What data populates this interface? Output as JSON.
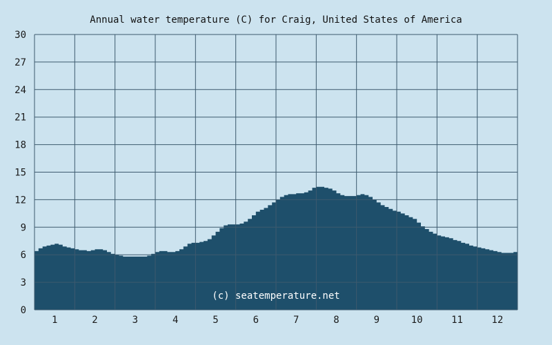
{
  "chart_data": {
    "type": "area",
    "title": "Annual water temperature (C) for Craig, United States of America",
    "watermark": "(c) seatemperature.net",
    "xlabel": "",
    "ylabel": "",
    "x_ticks": [
      "1",
      "2",
      "3",
      "4",
      "5",
      "6",
      "7",
      "8",
      "9",
      "10",
      "11",
      "12"
    ],
    "y_ticks": [
      "0",
      "3",
      "6",
      "9",
      "12",
      "15",
      "18",
      "21",
      "24",
      "27",
      "30"
    ],
    "xlim": [
      0.5,
      12.5
    ],
    "ylim": [
      0,
      30
    ],
    "grid": true,
    "colors": {
      "background": "#cce3ef",
      "fill": "#1e4f6b",
      "grid": "#3d5a6e"
    },
    "series": [
      {
        "x": [
          0.5,
          0.6,
          0.7,
          0.8,
          0.9,
          1.0,
          1.1,
          1.2,
          1.3,
          1.4,
          1.5,
          1.6,
          1.7,
          1.8,
          1.9,
          2.0,
          2.1,
          2.2,
          2.3,
          2.4,
          2.5,
          2.6,
          2.7,
          2.8,
          2.9,
          3.0,
          3.1,
          3.2,
          3.3,
          3.4,
          3.5,
          3.6,
          3.7,
          3.8,
          3.9,
          4.0,
          4.1,
          4.2,
          4.3,
          4.4,
          4.5,
          4.6,
          4.7,
          4.8,
          4.9,
          5.0,
          5.1,
          5.2,
          5.3,
          5.4,
          5.5,
          5.6,
          5.7,
          5.8,
          5.9,
          6.0,
          6.1,
          6.2,
          6.3,
          6.4,
          6.5,
          6.6,
          6.7,
          6.8,
          6.9,
          7.0,
          7.1,
          7.2,
          7.3,
          7.4,
          7.5,
          7.6,
          7.7,
          7.8,
          7.9,
          8.0,
          8.1,
          8.2,
          8.3,
          8.4,
          8.5,
          8.6,
          8.7,
          8.8,
          8.9,
          9.0,
          9.1,
          9.2,
          9.3,
          9.4,
          9.5,
          9.6,
          9.7,
          9.8,
          9.9,
          10.0,
          10.1,
          10.2,
          10.3,
          10.4,
          10.5,
          10.6,
          10.7,
          10.8,
          10.9,
          11.0,
          11.1,
          11.2,
          11.3,
          11.4,
          11.5,
          11.6,
          11.7,
          11.8,
          11.9,
          12.0,
          12.1,
          12.2,
          12.3,
          12.4,
          12.5
        ],
        "values": [
          6.4,
          6.7,
          6.9,
          7.0,
          7.1,
          7.2,
          7.1,
          6.9,
          6.8,
          6.7,
          6.6,
          6.5,
          6.5,
          6.4,
          6.5,
          6.6,
          6.6,
          6.5,
          6.3,
          6.1,
          6.0,
          5.9,
          5.8,
          5.8,
          5.8,
          5.8,
          5.8,
          5.8,
          5.9,
          6.1,
          6.3,
          6.4,
          6.4,
          6.3,
          6.3,
          6.4,
          6.6,
          6.9,
          7.2,
          7.3,
          7.3,
          7.4,
          7.5,
          7.7,
          8.1,
          8.5,
          8.9,
          9.2,
          9.3,
          9.3,
          9.3,
          9.4,
          9.6,
          9.9,
          10.3,
          10.7,
          10.9,
          11.1,
          11.4,
          11.7,
          12.0,
          12.3,
          12.5,
          12.6,
          12.6,
          12.7,
          12.7,
          12.8,
          13.0,
          13.3,
          13.4,
          13.4,
          13.3,
          13.2,
          13.0,
          12.7,
          12.5,
          12.4,
          12.4,
          12.4,
          12.5,
          12.6,
          12.5,
          12.3,
          12.0,
          11.7,
          11.4,
          11.2,
          11.0,
          10.8,
          10.7,
          10.5,
          10.3,
          10.1,
          9.9,
          9.5,
          9.1,
          8.8,
          8.5,
          8.3,
          8.1,
          8.0,
          7.9,
          7.8,
          7.6,
          7.5,
          7.3,
          7.2,
          7.0,
          6.9,
          6.8,
          6.7,
          6.6,
          6.5,
          6.4,
          6.3,
          6.2,
          6.2,
          6.2,
          6.3,
          6.5
        ]
      }
    ]
  }
}
